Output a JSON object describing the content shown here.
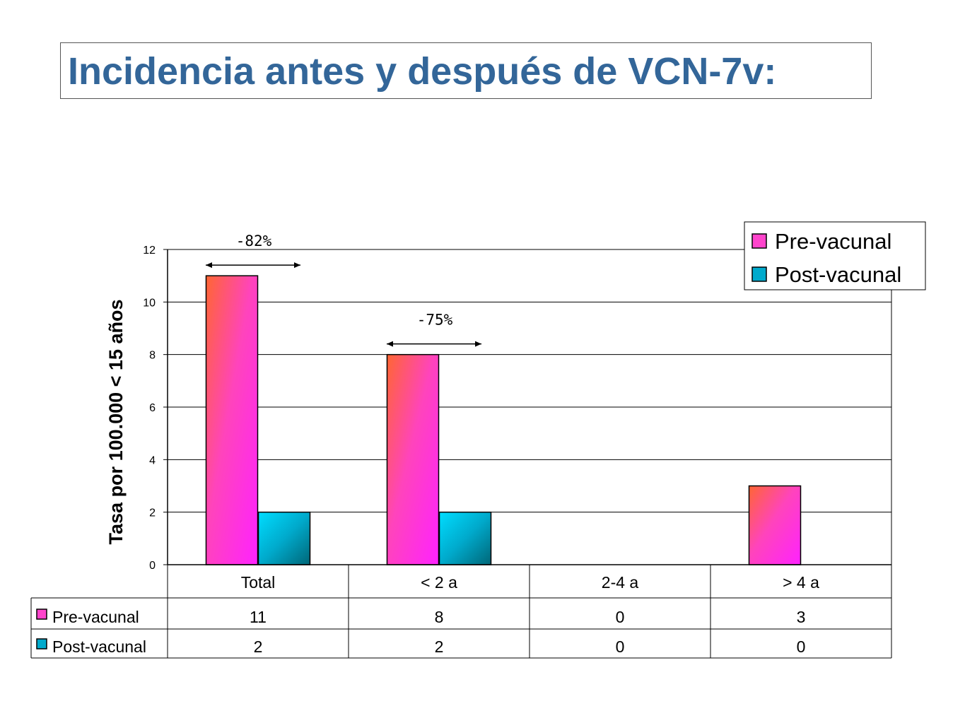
{
  "title": "Incidencia antes y después de VCN-7v:",
  "chart_data": {
    "type": "bar",
    "categories": [
      "Total",
      "< 2 a",
      "2-4 a",
      "> 4 a"
    ],
    "series": [
      {
        "name": "Pre-vacunal",
        "values": [
          11,
          8,
          0,
          3
        ],
        "color": "#ff44cc"
      },
      {
        "name": "Post-vacunal",
        "values": [
          2,
          2,
          0,
          0
        ],
        "color": "#00ccee"
      }
    ],
    "ylabel": "Tasa por 100.000 < 15 años",
    "ylim": [
      0,
      12
    ],
    "yticks": [
      "0",
      "2",
      "4",
      "6",
      "8",
      "10",
      "12"
    ],
    "table_values": [
      [
        "11",
        "8",
        "0",
        "3"
      ],
      [
        "2",
        "2",
        "0",
        "0"
      ]
    ],
    "annotations": [
      {
        "text": "-82%",
        "category_index": 0
      },
      {
        "text": "-75%",
        "category_index": 1
      }
    ],
    "legend": "top-right",
    "grid": true
  }
}
